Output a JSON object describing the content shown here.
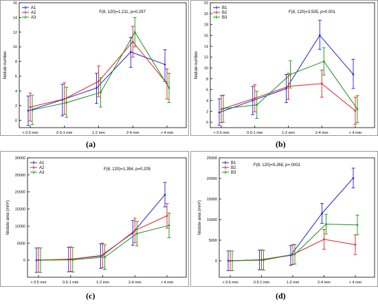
{
  "panel_labels": [
    "(a)",
    "(b)",
    "(c)",
    "(d)"
  ],
  "chart_data": [
    {
      "type": "line",
      "categories": [
        "< 0.5 mm",
        "0.5-1 mm",
        "1-2 mm",
        "2-4 mm",
        "> 4 mm"
      ],
      "ylabel": "Nodule number",
      "ylim": [
        -1,
        16
      ],
      "yticks": [
        0,
        2,
        4,
        6,
        8,
        10,
        12,
        14,
        16
      ],
      "annotation": "F(8, 120)=1.211, p=0.297",
      "legend_placement": "top-left",
      "grid": false,
      "series": [
        {
          "name": "A1",
          "color": "#1f1fd6",
          "values": [
            1.3,
            2.8,
            4.4,
            9.3,
            7.6
          ],
          "lower": [
            -0.7,
            0.6,
            2.3,
            7.2,
            5.3
          ],
          "upper": [
            3.3,
            4.9,
            6.4,
            11.3,
            9.6
          ]
        },
        {
          "name": "A2",
          "color": "#e21f1f",
          "values": [
            1.8,
            2.9,
            5.3,
            10.7,
            5.0
          ],
          "lower": [
            -0.1,
            0.8,
            3.2,
            8.6,
            2.9
          ],
          "upper": [
            3.7,
            5.1,
            7.4,
            12.8,
            7.0
          ]
        },
        {
          "name": "A3",
          "color": "#149314",
          "values": [
            1.4,
            2.4,
            3.8,
            12.0,
            4.4
          ],
          "lower": [
            -0.6,
            0.4,
            1.8,
            10.0,
            2.4
          ],
          "upper": [
            3.4,
            4.5,
            5.8,
            14.0,
            6.4
          ]
        }
      ]
    },
    {
      "type": "line",
      "categories": [
        "< 0.5 mm",
        "0.5-1 mm",
        "1-2 mm",
        "2-4 mm",
        "> 4 mm"
      ],
      "ylabel": "Nodule number",
      "ylim": [
        -1,
        22
      ],
      "yticks": [
        0,
        2,
        4,
        6,
        8,
        10,
        12,
        14,
        16,
        18,
        20,
        22
      ],
      "annotation": "F(8, 120)=3.535, p=0.001",
      "legend_placement": "top-left",
      "grid": false,
      "series": [
        {
          "name": "B1",
          "color": "#1f1fd6",
          "values": [
            1.8,
            4.0,
            6.2,
            16.0,
            8.8
          ],
          "lower": [
            -0.6,
            1.4,
            3.6,
            13.4,
            6.2
          ],
          "upper": [
            4.3,
            6.6,
            8.8,
            18.8,
            11.6
          ]
        },
        {
          "name": "B2",
          "color": "#e21f1f",
          "values": [
            2.4,
            4.4,
            6.6,
            7.1,
            2.1
          ],
          "lower": [
            -0.1,
            1.9,
            4.2,
            4.6,
            -0.4
          ],
          "upper": [
            4.9,
            6.9,
            9.0,
            9.6,
            4.6
          ]
        },
        {
          "name": "B3",
          "color": "#149314",
          "values": [
            2.5,
            3.2,
            8.8,
            11.2,
            2.4
          ],
          "lower": [
            0.0,
            0.7,
            6.3,
            8.7,
            -0.1
          ],
          "upper": [
            5.0,
            5.7,
            11.3,
            13.7,
            4.9
          ]
        }
      ]
    },
    {
      "type": "line",
      "categories": [
        "< 0.5 mm",
        "0.5-1 mm",
        "1-2 mm",
        "2-4 mm",
        "> 4 mm"
      ],
      "ylabel": "Nodule area (mm²)",
      "ylim": [
        -5000,
        30000
      ],
      "yticks": [
        0,
        5000,
        10000,
        15000,
        20000,
        25000,
        30000
      ],
      "annotation": "F(8, 120)=1.394, p=0.205",
      "legend_placement": "top-left",
      "grid": false,
      "series": [
        {
          "name": "A1",
          "color": "#1f1fd6",
          "values": [
            0,
            200,
            1200,
            8000,
            19200
          ],
          "lower": [
            -3600,
            -3400,
            -2400,
            4400,
            15600
          ],
          "upper": [
            3600,
            3800,
            4800,
            11600,
            22800
          ]
        },
        {
          "name": "A2",
          "color": "#e21f1f",
          "values": [
            50,
            300,
            1400,
            8700,
            13000
          ],
          "lower": [
            -3550,
            -3300,
            -2200,
            5100,
            9400
          ],
          "upper": [
            3650,
            3900,
            5000,
            12300,
            16600
          ]
        },
        {
          "name": "A3",
          "color": "#149314",
          "values": [
            0,
            100,
            900,
            7800,
            10200
          ],
          "lower": [
            -3600,
            -3500,
            -2700,
            4200,
            6600
          ],
          "upper": [
            3600,
            3700,
            4500,
            11400,
            13800
          ]
        }
      ]
    },
    {
      "type": "line",
      "categories": [
        "< 0.5 mm",
        "0.5-1 mm",
        "1-2 mm",
        "2-4 mm",
        "> 4 mm"
      ],
      "ylabel": "Nodule area (mm²)",
      "ylim": [
        -4000,
        25000
      ],
      "yticks": [
        0,
        5000,
        10000,
        15000,
        20000,
        25000
      ],
      "annotation": "F(8, 120)=9.268, p=.0001",
      "legend_placement": "top-left",
      "grid": false,
      "series": [
        {
          "name": "B1",
          "color": "#1f1fd6",
          "values": [
            0,
            200,
            1300,
            11500,
            20100
          ],
          "lower": [
            -2400,
            -2200,
            -1100,
            9100,
            17700
          ],
          "upper": [
            2400,
            2600,
            3700,
            13900,
            22500
          ]
        },
        {
          "name": "B2",
          "color": "#e21f1f",
          "values": [
            0,
            250,
            1500,
            5200,
            3900
          ],
          "lower": [
            -2400,
            -2150,
            -900,
            2800,
            1500
          ],
          "upper": [
            2400,
            2650,
            3900,
            7600,
            6300
          ]
        },
        {
          "name": "B3",
          "color": "#149314",
          "values": [
            0,
            150,
            1600,
            8900,
            8700
          ],
          "lower": [
            -2400,
            -2250,
            -800,
            6500,
            6300
          ],
          "upper": [
            2400,
            2550,
            4000,
            11300,
            11100
          ]
        }
      ]
    }
  ]
}
